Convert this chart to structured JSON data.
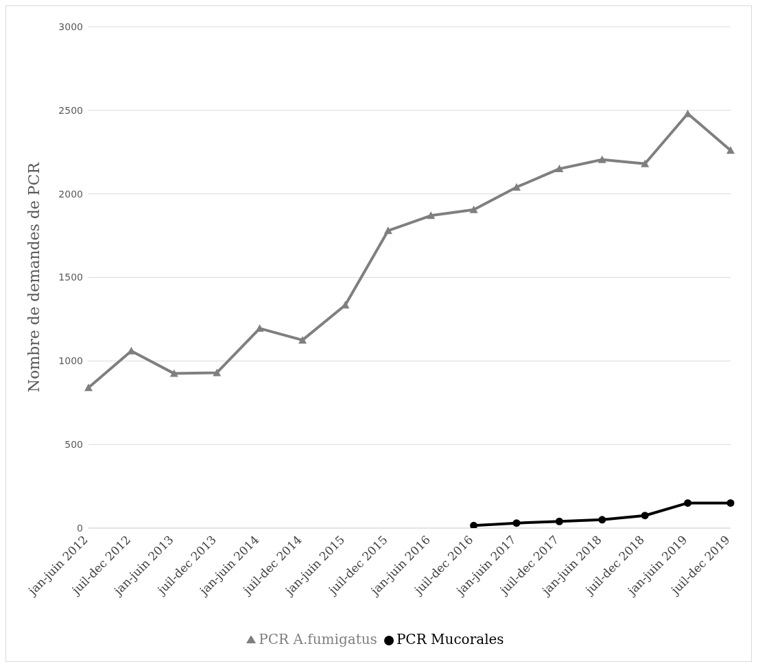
{
  "chart_data": {
    "type": "line",
    "ylabel": "Nombre de demandes de PCR",
    "categories": [
      "jan-juin 2012",
      "juil-dec 2012",
      "jan-juin 2013",
      "juil-dec 2013",
      "jan-juin 2014",
      "juil-dec 2014",
      "jan-juin 2015",
      "juil-dec 2015",
      "jan-juin 2016",
      "juil-dec 2016",
      "jan-juin 2017",
      "juil-dec 2017",
      "jan-juin 2018",
      "juil-dec 2018",
      "jan-juin 2019",
      "juil-dec 2019"
    ],
    "series": [
      {
        "name": "PCR A.fumigatus",
        "color": "#7f7f7f",
        "marker": "triangle",
        "values": [
          840,
          1060,
          925,
          930,
          1195,
          1125,
          1335,
          1780,
          1870,
          1905,
          2040,
          2150,
          2205,
          2180,
          2480,
          2260
        ]
      },
      {
        "name": "PCR Mucorales",
        "color": "#000000",
        "marker": "circle",
        "values": [
          null,
          null,
          null,
          null,
          null,
          null,
          null,
          null,
          null,
          15,
          30,
          40,
          50,
          75,
          150,
          150
        ]
      }
    ],
    "ylim": [
      0,
      3000
    ],
    "yticks": [
      0,
      500,
      1000,
      1500,
      2000,
      2500,
      3000
    ],
    "grid": "y",
    "legend": "bottom",
    "line_style": "solid"
  }
}
